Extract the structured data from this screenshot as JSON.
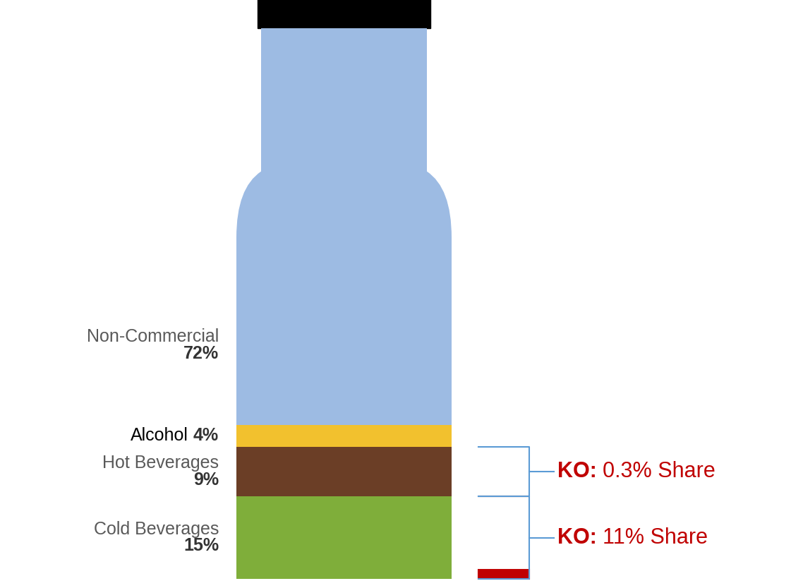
{
  "chart_data": {
    "type": "bar",
    "stacked": true,
    "tick_labels": false,
    "series": [
      {
        "name": "Cold Beverages",
        "values": [
          15
        ],
        "value_labels": [
          "15%"
        ],
        "color": "#7fae3a"
      },
      {
        "name": "Hot Beverages",
        "values": [
          9
        ],
        "value_labels": [
          "9%"
        ],
        "color": "#6b3e26"
      },
      {
        "name": "Alcohol",
        "values": [
          4
        ],
        "value_labels": [
          "4%"
        ],
        "color": "#f2c12e"
      },
      {
        "name": "Non-Commercial",
        "values": [
          72
        ],
        "value_labels": [
          "72%"
        ],
        "color": "#9dbbe3"
      }
    ],
    "annotations": [
      {
        "series": "Hot Beverages",
        "label": "KO:",
        "value": 0.3,
        "value_label": "0.3% Share",
        "color": "#c00000"
      },
      {
        "series": "Cold Beverages",
        "label": "KO:",
        "value": 11,
        "value_label": "11% Share",
        "color": "#c00000"
      }
    ]
  }
}
